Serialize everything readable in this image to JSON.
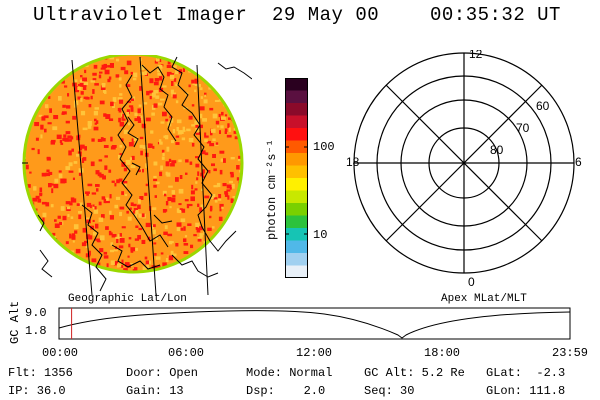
{
  "header": {
    "instrument": "Ultraviolet Imager",
    "date": "29 May 00",
    "time": "00:35:32 UT"
  },
  "colorbar": {
    "unit_label": "photon cm⁻²s⁻¹",
    "ticks": [
      "100",
      "10"
    ],
    "colors": [
      "#2a001f",
      "#5a1040",
      "#8a0a2a",
      "#c8102a",
      "#ff1010",
      "#ff5a00",
      "#ff9800",
      "#ffc000",
      "#fff000",
      "#c8e800",
      "#7ad000",
      "#2cc23c",
      "#16c4b4",
      "#50b8e8",
      "#a0d0f0",
      "#e8f0f8"
    ]
  },
  "polar_plot": {
    "labels": {
      "top": "12",
      "bottom": "0",
      "left": "18",
      "right": "6"
    },
    "lat_labels": [
      "60",
      "70",
      "80"
    ]
  },
  "captions": {
    "left": "Geographic Lat/Lon",
    "right": "Apex MLat/MLT"
  },
  "altitude_plot": {
    "axis_label": "GC Alt",
    "y_ticks": [
      "9.0",
      "1.8"
    ],
    "x_ticks": [
      "00:00",
      "06:00",
      "12:00",
      "18:00",
      "23:59"
    ],
    "current_time_hours": 0.59
  },
  "info": {
    "flt": "Flt: 1356",
    "ip": "IP: 36.0",
    "door": "Door: Open",
    "gain": "Gain: 13",
    "mode": "Mode: Normal",
    "dsp": "Dsp:    2.0",
    "gcalt": "GC Alt: 5.2 Re",
    "seq": "Seq: 30",
    "glat": "GLat:  -2.3",
    "glon": "GLon: 111.8"
  },
  "colors": {
    "disk_base": "#ff9a1a",
    "disk_speckle": "#ff1a10",
    "disk_rim": "#9ad800",
    "time_marker": "#d02020"
  }
}
